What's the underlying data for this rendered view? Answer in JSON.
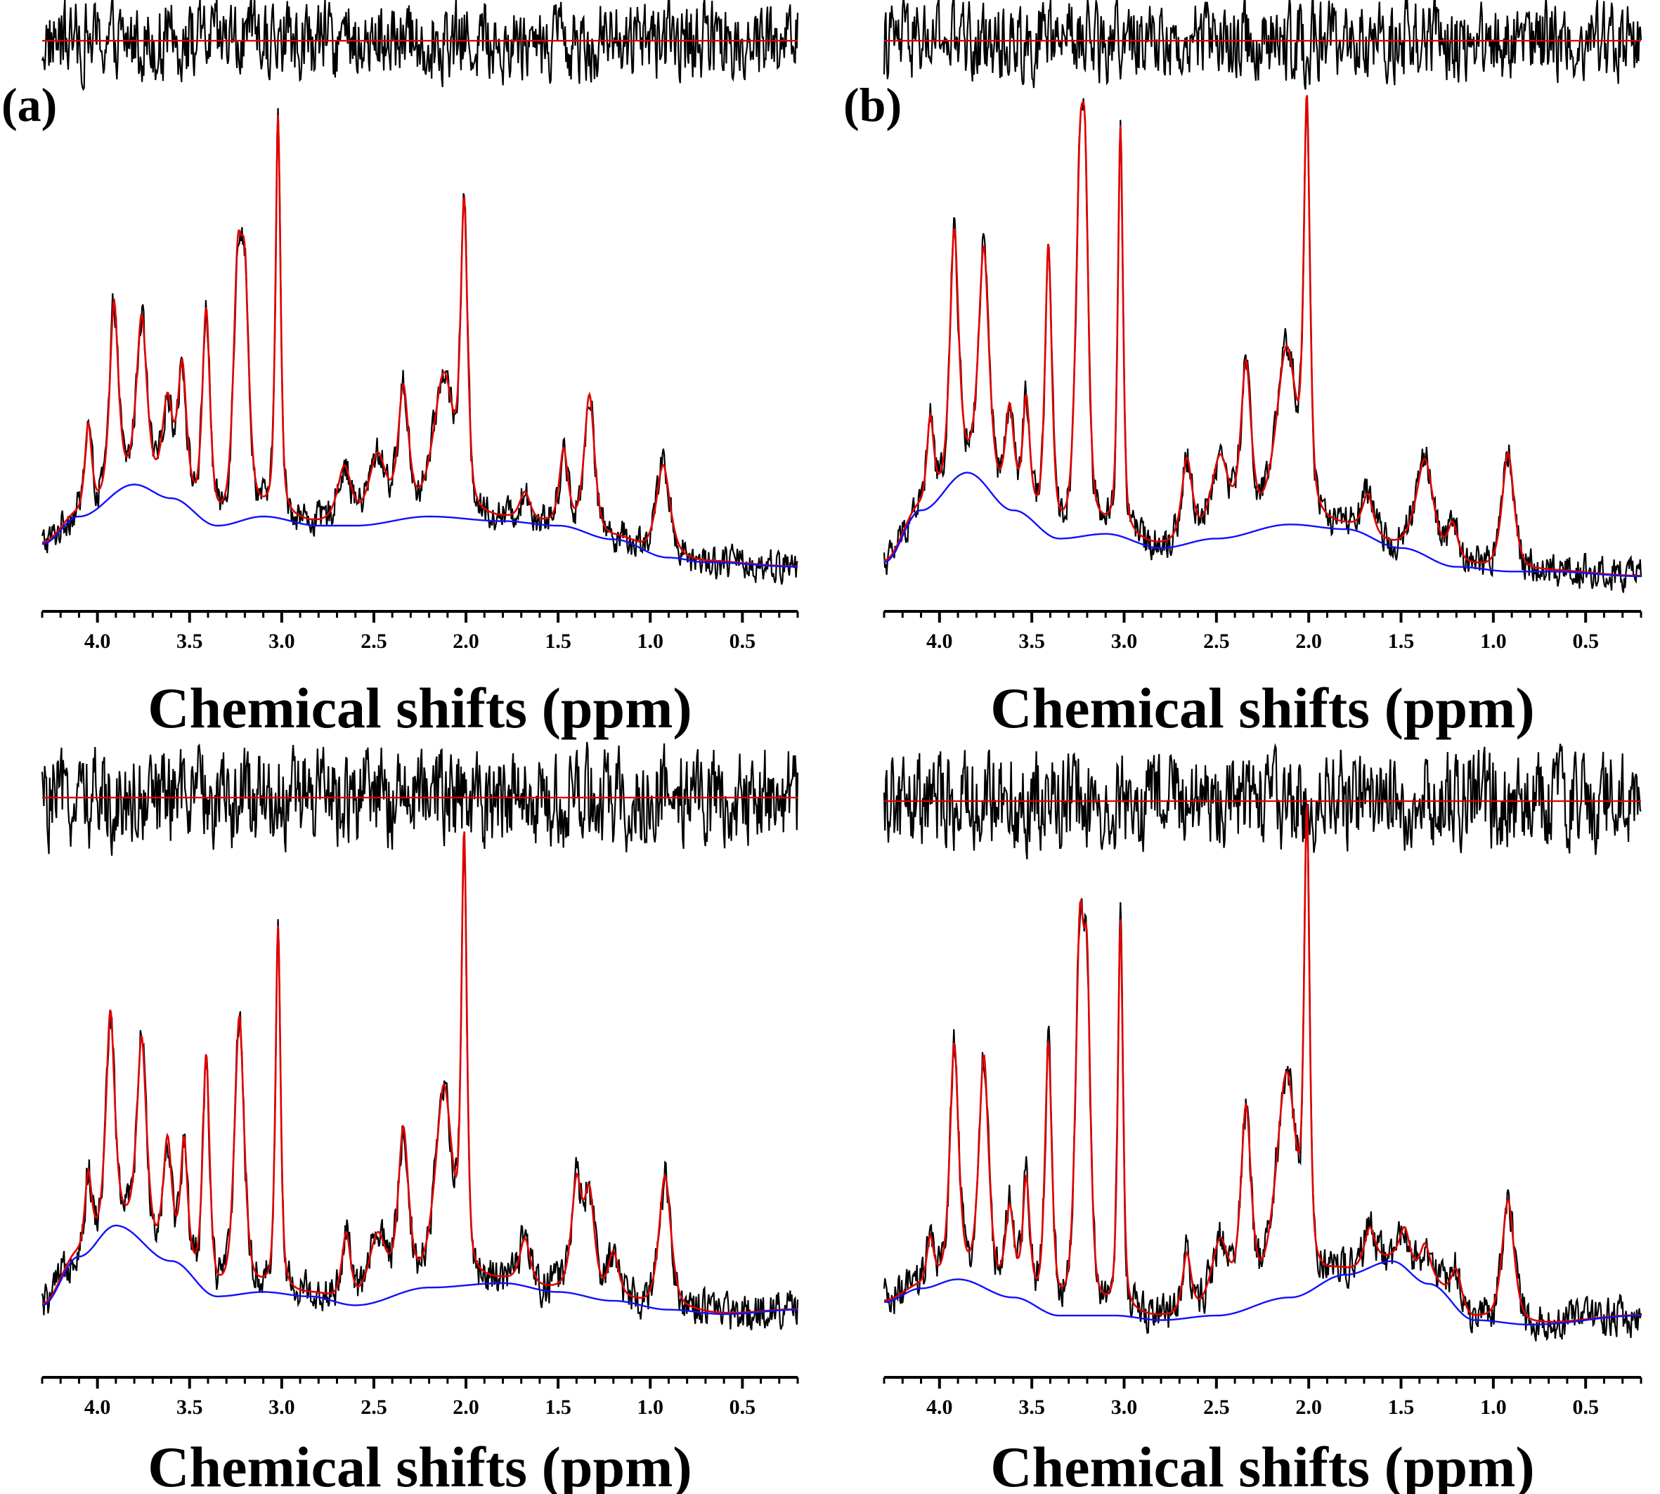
{
  "figure": {
    "description_visible": "MR spectra with fit, baseline and residual, four panels",
    "colors": {
      "measured": "#000000",
      "fit": "#e00000",
      "baseline": "#1010ff",
      "axis": "#000000"
    }
  },
  "chart_data": [
    {
      "panel": "top-left",
      "type": "line",
      "panel_label": "(a)",
      "xlabel": "Chemical shifts (ppm)",
      "ylabel": "",
      "xlim": [
        4.3,
        0.2
      ],
      "x_reversed": true,
      "ticks": [
        "4.0",
        "3.5",
        "3.0",
        "2.5",
        "2.0",
        "1.5",
        "1.0",
        "0.5"
      ],
      "tick_values": [
        4.0,
        3.5,
        3.0,
        2.5,
        2.0,
        1.5,
        1.0,
        0.5
      ],
      "baseline_level": 0.0,
      "baseline_points": [
        [
          4.3,
          0.04
        ],
        [
          4.1,
          0.1
        ],
        [
          3.8,
          0.17
        ],
        [
          3.6,
          0.14
        ],
        [
          3.35,
          0.08
        ],
        [
          3.1,
          0.1
        ],
        [
          2.8,
          0.08
        ],
        [
          2.6,
          0.08
        ],
        [
          2.2,
          0.1
        ],
        [
          1.8,
          0.09
        ],
        [
          1.5,
          0.08
        ],
        [
          1.2,
          0.05
        ],
        [
          0.9,
          0.01
        ],
        [
          0.7,
          0.0
        ],
        [
          0.2,
          -0.01
        ]
      ],
      "peaks": [
        {
          "ppm": 4.05,
          "height": 0.19,
          "width": 0.02
        },
        {
          "ppm": 3.91,
          "height": 0.41,
          "width": 0.025
        },
        {
          "ppm": 3.76,
          "height": 0.36,
          "width": 0.03
        },
        {
          "ppm": 3.62,
          "height": 0.2,
          "width": 0.03
        },
        {
          "ppm": 3.54,
          "height": 0.28,
          "width": 0.025
        },
        {
          "ppm": 3.41,
          "height": 0.45,
          "width": 0.022
        },
        {
          "ppm": 3.24,
          "height": 0.48,
          "width": 0.025
        },
        {
          "ppm": 3.2,
          "height": 0.45,
          "width": 0.025
        },
        {
          "ppm": 3.02,
          "height": 0.87,
          "width": 0.015
        },
        {
          "ppm": 2.66,
          "height": 0.12,
          "width": 0.04
        },
        {
          "ppm": 2.48,
          "height": 0.14,
          "width": 0.05
        },
        {
          "ppm": 2.34,
          "height": 0.27,
          "width": 0.03
        },
        {
          "ppm": 2.12,
          "height": 0.3,
          "width": 0.06
        },
        {
          "ppm": 2.01,
          "height": 0.64,
          "width": 0.02
        },
        {
          "ppm": 1.68,
          "height": 0.06,
          "width": 0.03
        },
        {
          "ppm": 1.47,
          "height": 0.16,
          "width": 0.025
        },
        {
          "ppm": 1.33,
          "height": 0.3,
          "width": 0.03
        },
        {
          "ppm": 0.93,
          "height": 0.2,
          "width": 0.04
        }
      ],
      "residual_amplitude": 0.02,
      "noise_amplitude": 0.015
    },
    {
      "panel": "top-right",
      "type": "line",
      "panel_label": "(b)",
      "xlabel": "Chemical shifts (ppm)",
      "ylabel": "",
      "xlim": [
        4.3,
        0.2
      ],
      "x_reversed": true,
      "ticks": [
        "4.0",
        "3.5",
        "3.0",
        "2.5",
        "2.0",
        "1.5",
        "1.0",
        "0.5"
      ],
      "tick_values": [
        4.0,
        3.5,
        3.0,
        2.5,
        2.0,
        1.5,
        1.0,
        0.5
      ],
      "baseline_level": 0.0,
      "baseline_points": [
        [
          4.3,
          0.03
        ],
        [
          4.1,
          0.14
        ],
        [
          3.85,
          0.22
        ],
        [
          3.6,
          0.14
        ],
        [
          3.35,
          0.08
        ],
        [
          3.1,
          0.09
        ],
        [
          2.8,
          0.06
        ],
        [
          2.5,
          0.08
        ],
        [
          2.1,
          0.11
        ],
        [
          1.8,
          0.1
        ],
        [
          1.5,
          0.06
        ],
        [
          1.2,
          0.02
        ],
        [
          0.9,
          0.01
        ],
        [
          0.7,
          0.01
        ],
        [
          0.2,
          0.0
        ]
      ],
      "peaks": [
        {
          "ppm": 4.05,
          "height": 0.18,
          "width": 0.02
        },
        {
          "ppm": 3.92,
          "height": 0.52,
          "width": 0.025
        },
        {
          "ppm": 3.76,
          "height": 0.49,
          "width": 0.03
        },
        {
          "ppm": 3.62,
          "height": 0.2,
          "width": 0.025
        },
        {
          "ppm": 3.53,
          "height": 0.23,
          "width": 0.02
        },
        {
          "ppm": 3.41,
          "height": 0.6,
          "width": 0.02
        },
        {
          "ppm": 3.24,
          "height": 0.68,
          "width": 0.025
        },
        {
          "ppm": 3.21,
          "height": 0.55,
          "width": 0.02
        },
        {
          "ppm": 3.02,
          "height": 0.86,
          "width": 0.015
        },
        {
          "ppm": 2.66,
          "height": 0.17,
          "width": 0.03
        },
        {
          "ppm": 2.48,
          "height": 0.16,
          "width": 0.05
        },
        {
          "ppm": 2.34,
          "height": 0.34,
          "width": 0.03
        },
        {
          "ppm": 2.12,
          "height": 0.36,
          "width": 0.06
        },
        {
          "ppm": 2.01,
          "height": 0.84,
          "width": 0.018
        },
        {
          "ppm": 1.68,
          "height": 0.08,
          "width": 0.03
        },
        {
          "ppm": 1.37,
          "height": 0.2,
          "width": 0.05
        },
        {
          "ppm": 1.22,
          "height": 0.08,
          "width": 0.03
        },
        {
          "ppm": 0.92,
          "height": 0.25,
          "width": 0.035
        }
      ],
      "residual_amplitude": 0.02,
      "noise_amplitude": 0.015
    },
    {
      "panel": "bottom-left",
      "type": "line",
      "panel_label": "",
      "xlabel": "Chemical shifts (ppm)",
      "ylabel": "",
      "xlim": [
        4.3,
        0.2
      ],
      "x_reversed": true,
      "ticks": [
        "4.0",
        "3.5",
        "3.0",
        "2.5",
        "2.0",
        "1.5",
        "1.0",
        "0.5"
      ],
      "tick_values": [
        4.0,
        3.5,
        3.0,
        2.5,
        2.0,
        1.5,
        1.0,
        0.5
      ],
      "baseline_level": 0.0,
      "baseline_points": [
        [
          4.3,
          0.02
        ],
        [
          4.1,
          0.13
        ],
        [
          3.9,
          0.2
        ],
        [
          3.6,
          0.12
        ],
        [
          3.35,
          0.04
        ],
        [
          3.1,
          0.05
        ],
        [
          2.85,
          0.04
        ],
        [
          2.6,
          0.02
        ],
        [
          2.2,
          0.06
        ],
        [
          1.8,
          0.07
        ],
        [
          1.5,
          0.05
        ],
        [
          1.2,
          0.03
        ],
        [
          0.9,
          0.01
        ],
        [
          0.6,
          0.0
        ],
        [
          0.2,
          0.01
        ]
      ],
      "peaks": [
        {
          "ppm": 4.05,
          "height": 0.17,
          "width": 0.02
        },
        {
          "ppm": 3.93,
          "height": 0.48,
          "width": 0.025
        },
        {
          "ppm": 3.76,
          "height": 0.45,
          "width": 0.028
        },
        {
          "ppm": 3.62,
          "height": 0.26,
          "width": 0.025
        },
        {
          "ppm": 3.53,
          "height": 0.27,
          "width": 0.02
        },
        {
          "ppm": 3.41,
          "height": 0.52,
          "width": 0.02
        },
        {
          "ppm": 3.23,
          "height": 0.62,
          "width": 0.028
        },
        {
          "ppm": 3.02,
          "height": 0.82,
          "width": 0.015
        },
        {
          "ppm": 2.65,
          "height": 0.15,
          "width": 0.025
        },
        {
          "ppm": 2.48,
          "height": 0.14,
          "width": 0.05
        },
        {
          "ppm": 2.34,
          "height": 0.35,
          "width": 0.03
        },
        {
          "ppm": 2.12,
          "height": 0.44,
          "width": 0.05
        },
        {
          "ppm": 2.01,
          "height": 0.97,
          "width": 0.016
        },
        {
          "ppm": 1.68,
          "height": 0.1,
          "width": 0.03
        },
        {
          "ppm": 1.4,
          "height": 0.24,
          "width": 0.03
        },
        {
          "ppm": 1.33,
          "height": 0.22,
          "width": 0.03
        },
        {
          "ppm": 1.2,
          "height": 0.1,
          "width": 0.03
        },
        {
          "ppm": 0.92,
          "height": 0.3,
          "width": 0.035
        }
      ],
      "residual_amplitude": 0.025,
      "noise_amplitude": 0.018
    },
    {
      "panel": "bottom-right",
      "type": "line",
      "panel_label": "",
      "xlabel": "Chemical shifts (ppm)",
      "ylabel": "",
      "xlim": [
        4.3,
        0.2
      ],
      "x_reversed": true,
      "ticks": [
        "4.0",
        "3.5",
        "3.0",
        "2.5",
        "2.0",
        "1.5",
        "1.0",
        "0.5"
      ],
      "tick_values": [
        4.0,
        3.5,
        3.0,
        2.5,
        2.0,
        1.5,
        1.0,
        0.5
      ],
      "baseline_level": 0.0,
      "baseline_points": [
        [
          4.3,
          0.05
        ],
        [
          4.1,
          0.08
        ],
        [
          3.9,
          0.1
        ],
        [
          3.6,
          0.06
        ],
        [
          3.35,
          0.02
        ],
        [
          3.05,
          0.02
        ],
        [
          2.8,
          0.01
        ],
        [
          2.5,
          0.02
        ],
        [
          2.1,
          0.06
        ],
        [
          1.8,
          0.11
        ],
        [
          1.55,
          0.14
        ],
        [
          1.35,
          0.09
        ],
        [
          1.1,
          0.01
        ],
        [
          0.8,
          0.0
        ],
        [
          0.2,
          0.02
        ]
      ],
      "peaks": [
        {
          "ppm": 4.05,
          "height": 0.1,
          "width": 0.02
        },
        {
          "ppm": 3.92,
          "height": 0.51,
          "width": 0.025
        },
        {
          "ppm": 3.76,
          "height": 0.5,
          "width": 0.028
        },
        {
          "ppm": 3.62,
          "height": 0.18,
          "width": 0.025
        },
        {
          "ppm": 3.53,
          "height": 0.25,
          "width": 0.02
        },
        {
          "ppm": 3.41,
          "height": 0.58,
          "width": 0.02
        },
        {
          "ppm": 3.24,
          "height": 0.79,
          "width": 0.025
        },
        {
          "ppm": 3.2,
          "height": 0.6,
          "width": 0.02
        },
        {
          "ppm": 3.02,
          "height": 0.86,
          "width": 0.015
        },
        {
          "ppm": 2.66,
          "height": 0.13,
          "width": 0.025
        },
        {
          "ppm": 2.48,
          "height": 0.15,
          "width": 0.05
        },
        {
          "ppm": 2.34,
          "height": 0.42,
          "width": 0.03
        },
        {
          "ppm": 2.12,
          "height": 0.48,
          "width": 0.06
        },
        {
          "ppm": 2.01,
          "height": 0.98,
          "width": 0.016
        },
        {
          "ppm": 1.67,
          "height": 0.08,
          "width": 0.03
        },
        {
          "ppm": 1.48,
          "height": 0.08,
          "width": 0.03
        },
        {
          "ppm": 1.37,
          "height": 0.08,
          "width": 0.03
        },
        {
          "ppm": 1.2,
          "height": 0.08,
          "width": 0.03
        },
        {
          "ppm": 0.92,
          "height": 0.27,
          "width": 0.035
        }
      ],
      "residual_amplitude": 0.025,
      "noise_amplitude": 0.018
    }
  ]
}
